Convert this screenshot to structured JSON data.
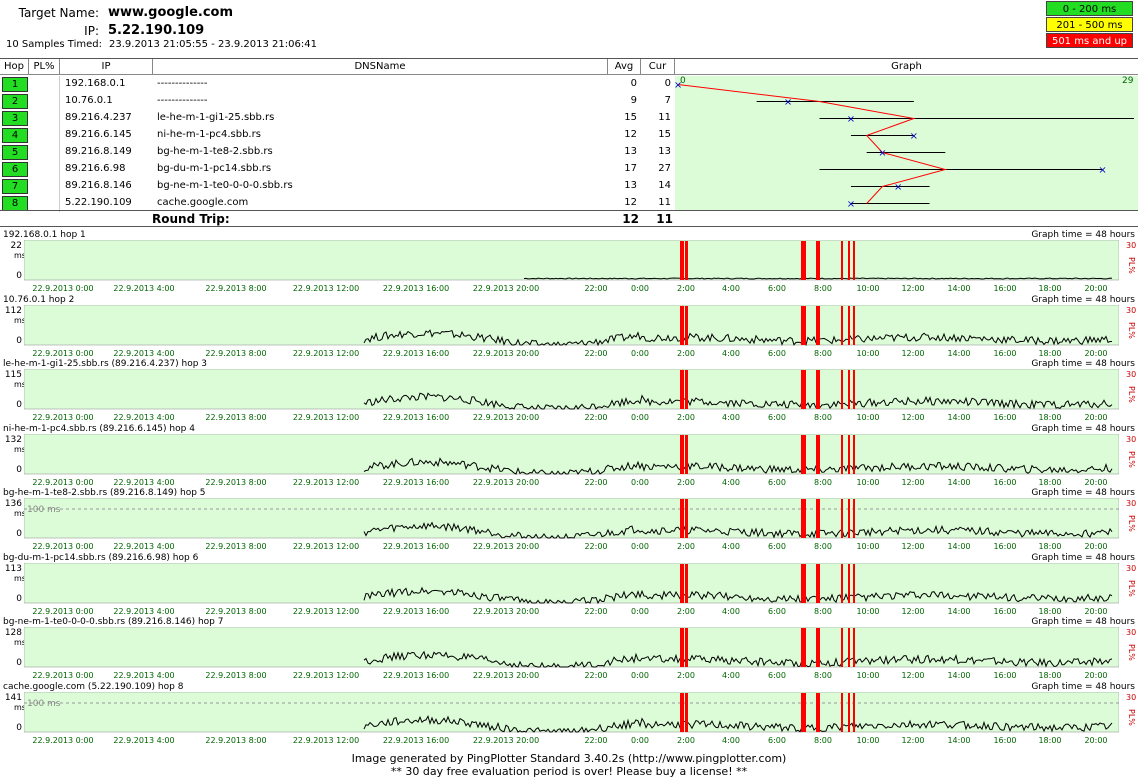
{
  "header": {
    "target_label": "Target Name:",
    "target_value": "www.google.com",
    "ip_label": "IP:",
    "ip_value": "5.22.190.109",
    "samples_label": "10 Samples Timed:",
    "samples_value": "23.9.2013 21:05:55 - 23.9.2013 21:06:41"
  },
  "legend": [
    {
      "label": "0 - 200 ms",
      "bg": "#22dd22",
      "fg": "#000"
    },
    {
      "label": "201 - 500 ms",
      "bg": "#ffff00",
      "fg": "#000"
    },
    {
      "label": "501 ms and up",
      "bg": "#ff0000",
      "fg": "#fff"
    }
  ],
  "table": {
    "headers": {
      "hop": "Hop",
      "pl": "PL%",
      "ip": "IP",
      "dns": "DNSName",
      "avg": "Avg",
      "cur": "Cur",
      "graph": "Graph"
    },
    "graph_scale_min": "0",
    "graph_scale_max": "29",
    "rows": [
      {
        "hop": "1",
        "ip": "192.168.0.1",
        "dns": "--------------",
        "avg": "0",
        "cur": "0",
        "min": 0,
        "max": 0
      },
      {
        "hop": "2",
        "ip": "10.76.0.1",
        "dns": "--------------",
        "avg": "9",
        "cur": "7",
        "min": 5,
        "max": 15
      },
      {
        "hop": "3",
        "ip": "89.216.4.237",
        "dns": "le-he-m-1-gi1-25.sbb.rs",
        "avg": "15",
        "cur": "11",
        "min": 9,
        "max": 29
      },
      {
        "hop": "4",
        "ip": "89.216.6.145",
        "dns": "ni-he-m-1-pc4.sbb.rs",
        "avg": "12",
        "cur": "15",
        "min": 11,
        "max": 15
      },
      {
        "hop": "5",
        "ip": "89.216.8.149",
        "dns": "bg-he-m-1-te8-2.sbb.rs",
        "avg": "13",
        "cur": "13",
        "min": 12,
        "max": 17
      },
      {
        "hop": "6",
        "ip": "89.216.6.98",
        "dns": "bg-du-m-1-pc14.sbb.rs",
        "avg": "17",
        "cur": "27",
        "min": 9,
        "max": 27
      },
      {
        "hop": "7",
        "ip": "89.216.8.146",
        "dns": "bg-ne-m-1-te0-0-0-0.sbb.rs",
        "avg": "13",
        "cur": "14",
        "min": 11,
        "max": 16
      },
      {
        "hop": "8",
        "ip": "5.22.190.109",
        "dns": "cache.google.com",
        "avg": "12",
        "cur": "11",
        "min": 11,
        "max": 16
      }
    ],
    "round_trip_label": "Round Trip:",
    "round_trip_avg": "12",
    "round_trip_cur": "11"
  },
  "graphs": {
    "time_label": "Graph time = 48 hours",
    "ms_label": "ms",
    "pl_label": "PL%",
    "pl_max": "30",
    "threshold_label": "100 ms",
    "x_ticks": [
      "22.9.2013 0:00",
      "22.9.2013 4:00",
      "22.9.2013 8:00",
      "22.9.2013 12:00",
      "22.9.2013 16:00",
      "22.9.2013 20:00",
      "22:00",
      "0:00",
      "2:00",
      "4:00",
      "6:00",
      "8:00",
      "10:00",
      "12:00",
      "14:00",
      "16:00",
      "18:00",
      "20:00"
    ],
    "panels": [
      {
        "label": "192.168.0.1 hop 1",
        "ymax": "22",
        "ymin": "0",
        "threshold": false
      },
      {
        "label": "10.76.0.1 hop 2",
        "ymax": "112",
        "ymin": "0",
        "threshold": false
      },
      {
        "label": "le-he-m-1-gi1-25.sbb.rs (89.216.4.237) hop 3",
        "ymax": "115",
        "ymin": "0",
        "threshold": false
      },
      {
        "label": "ni-he-m-1-pc4.sbb.rs (89.216.6.145) hop 4",
        "ymax": "132",
        "ymin": "0",
        "threshold": false
      },
      {
        "label": "bg-he-m-1-te8-2.sbb.rs (89.216.8.149) hop 5",
        "ymax": "136",
        "ymin": "0",
        "threshold": true
      },
      {
        "label": "bg-du-m-1-pc14.sbb.rs (89.216.6.98) hop 6",
        "ymax": "113",
        "ymin": "0",
        "threshold": false
      },
      {
        "label": "bg-ne-m-1-te0-0-0-0.sbb.rs (89.216.8.146) hop 7",
        "ymax": "128",
        "ymin": "0",
        "threshold": false
      },
      {
        "label": "cache.google.com (5.22.190.109) hop 8",
        "ymax": "141",
        "ymin": "0",
        "threshold": true
      }
    ]
  },
  "footer": {
    "line1": "Image generated by PingPlotter Standard 3.40.2s (http://www.pingplotter.com)",
    "line2": "** 30 day free evaluation period is over!  Please buy a license! **"
  },
  "colors": {
    "graph_bg": "#dcfcd8",
    "hop_button": "#22dd22",
    "line": "#ff0000",
    "marker": "#0000cc",
    "axis_text": "#006600",
    "loss": "#ff0000"
  }
}
